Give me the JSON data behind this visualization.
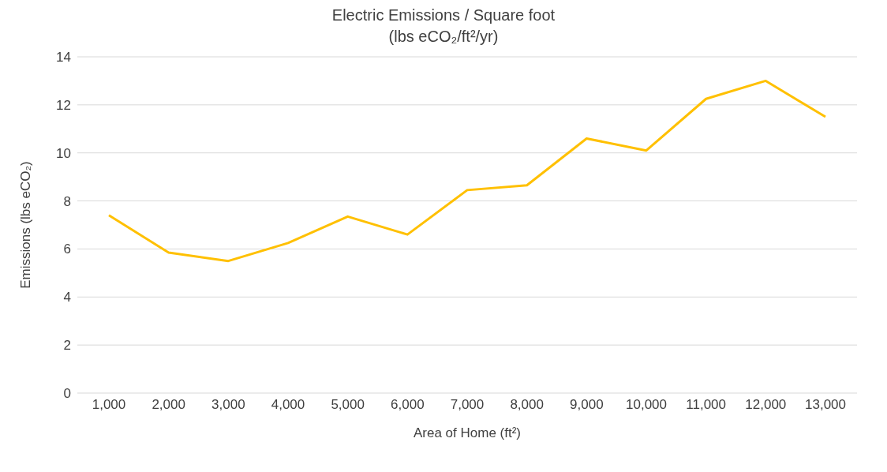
{
  "chart_data": {
    "type": "line",
    "title": "Electric Emissions / Square foot",
    "subtitle": "(lbs eCO₂/ft²/yr)",
    "xlabel": "Area of Home (ft²)",
    "ylabel": "Emissions (lbs eCO₂)",
    "categories": [
      "1,000",
      "2,000",
      "3,000",
      "4,000",
      "5,000",
      "6,000",
      "7,000",
      "8,000",
      "9,000",
      "10,000",
      "11,000",
      "12,000",
      "13,000"
    ],
    "series": [
      {
        "color": "#ffc000",
        "values": [
          7.4,
          5.85,
          5.5,
          6.25,
          7.35,
          6.6,
          8.45,
          8.65,
          10.6,
          10.1,
          12.25,
          13.0,
          11.5
        ]
      }
    ],
    "ylim": [
      0,
      14
    ],
    "yticks": [
      0,
      2,
      4,
      6,
      8,
      10,
      12,
      14
    ],
    "grid": "y",
    "marker": "none",
    "line_style": "solid",
    "legend": false
  }
}
